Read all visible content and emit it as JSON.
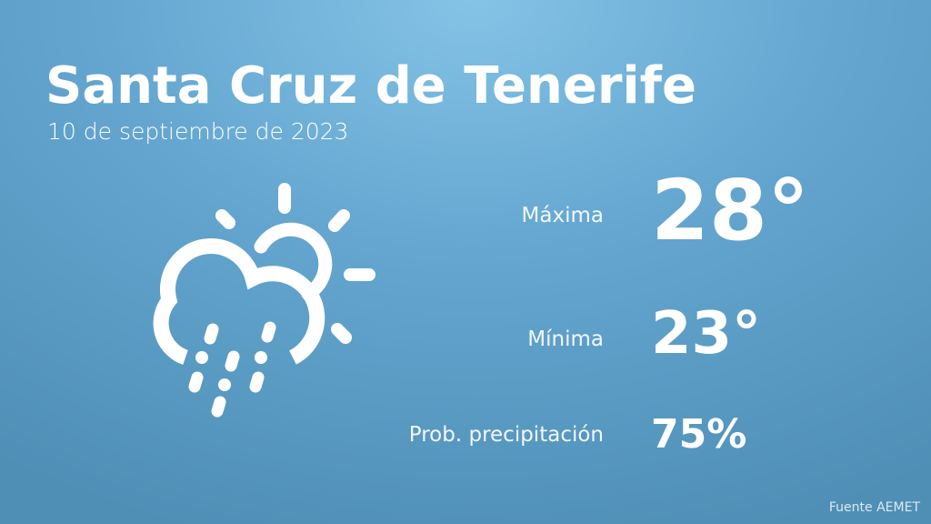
{
  "city": "Santa Cruz de Tenerife",
  "date": "10 de septiembre de 2023",
  "weather_icon": "cloud-sun-rain-icon",
  "max": {
    "label": "Máxima",
    "value": "28°"
  },
  "min": {
    "label": "Mínima",
    "value": "23°"
  },
  "precip": {
    "label": "Prob. precipitación",
    "value": "75%"
  },
  "source": "Fuente AEMET"
}
